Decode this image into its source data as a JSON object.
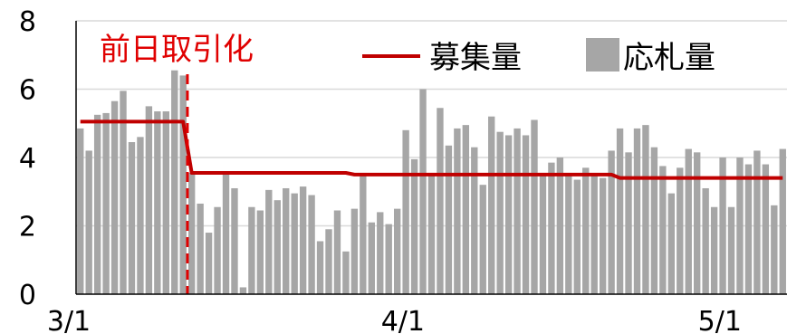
{
  "chart_data": {
    "type": "bar",
    "title": "",
    "xlabel": "",
    "ylabel": "",
    "ylim": [
      0,
      8
    ],
    "y_ticks": [
      "0",
      "2",
      "4",
      "6",
      "8"
    ],
    "x_tick_labels": [
      {
        "label": "3/1",
        "index": 0
      },
      {
        "label": "4/1",
        "index": 39
      },
      {
        "label": "5/1",
        "index": 76
      }
    ],
    "grid": "horizontal",
    "legend_placement": "top",
    "series": [
      {
        "name": "応札量",
        "type": "bar",
        "color": "#a6a6a6",
        "values": [
          4.85,
          4.2,
          5.25,
          5.3,
          5.65,
          5.95,
          4.45,
          4.6,
          5.5,
          5.35,
          5.35,
          6.55,
          6.4,
          3.55,
          2.65,
          1.8,
          2.55,
          3.55,
          3.1,
          0.2,
          2.55,
          2.45,
          3.05,
          2.75,
          3.1,
          2.95,
          3.15,
          2.9,
          1.55,
          1.9,
          2.45,
          1.25,
          2.5,
          3.55,
          2.1,
          2.4,
          2.05,
          2.5,
          4.8,
          3.95,
          6.0,
          3.55,
          5.45,
          4.35,
          4.85,
          4.95,
          4.3,
          3.2,
          5.2,
          4.75,
          4.65,
          4.85,
          4.65,
          5.1,
          3.55,
          3.85,
          4.0,
          3.55,
          3.35,
          3.7,
          3.5,
          3.4,
          4.2,
          4.85,
          4.15,
          4.85,
          4.95,
          4.3,
          3.75,
          2.95,
          3.7,
          4.25,
          4.15,
          3.1,
          2.55,
          4.0,
          2.55,
          4.0,
          3.8,
          4.2,
          3.8,
          2.6,
          4.25
        ]
      },
      {
        "name": "募集量",
        "type": "line",
        "color": "#c00000",
        "values": [
          5.05,
          5.05,
          5.05,
          5.05,
          5.05,
          5.05,
          5.05,
          5.05,
          5.05,
          5.05,
          5.05,
          5.05,
          5.05,
          3.55,
          3.55,
          3.55,
          3.55,
          3.55,
          3.55,
          3.55,
          3.55,
          3.55,
          3.55,
          3.55,
          3.55,
          3.55,
          3.55,
          3.55,
          3.55,
          3.55,
          3.55,
          3.55,
          3.5,
          3.5,
          3.5,
          3.5,
          3.5,
          3.5,
          3.5,
          3.5,
          3.5,
          3.5,
          3.5,
          3.5,
          3.5,
          3.5,
          3.5,
          3.5,
          3.5,
          3.5,
          3.5,
          3.5,
          3.5,
          3.5,
          3.5,
          3.5,
          3.5,
          3.5,
          3.5,
          3.5,
          3.5,
          3.5,
          3.5,
          3.4,
          3.4,
          3.4,
          3.4,
          3.4,
          3.4,
          3.4,
          3.4,
          3.4,
          3.4,
          3.4,
          3.4,
          3.4,
          3.4,
          3.4,
          3.4,
          3.4,
          3.4,
          3.4,
          3.4
        ]
      }
    ],
    "annotation": {
      "label": "前日取引化",
      "color": "#e00000",
      "at_index": 12.5
    }
  }
}
